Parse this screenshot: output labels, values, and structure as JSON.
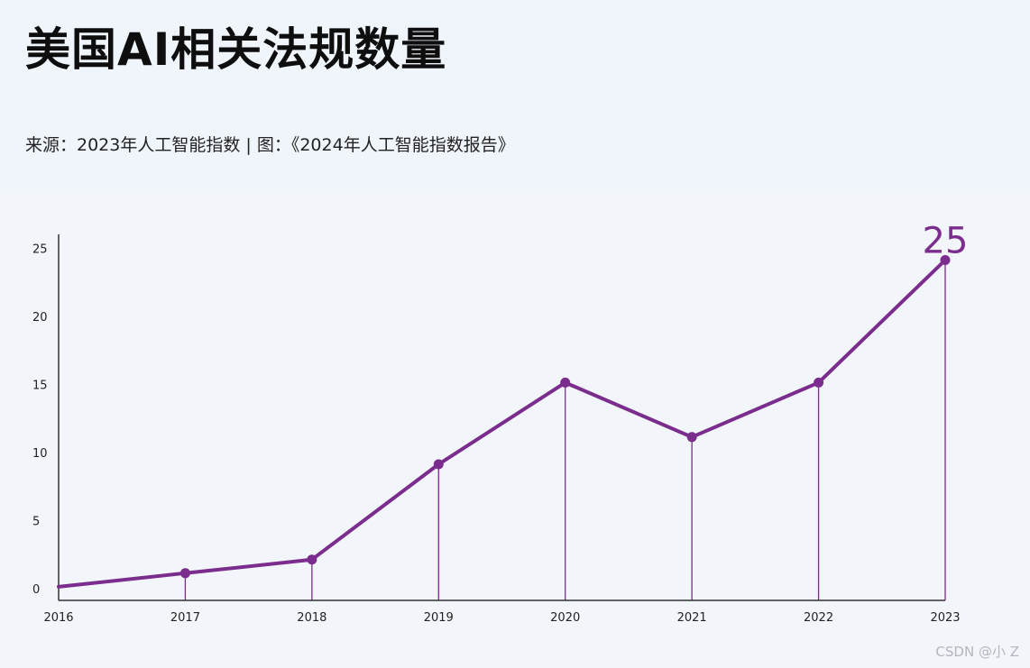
{
  "title": "美国AI相关法规数量",
  "source": "来源：2023年人工智能指数 | 图：《2024年人工智能指数报告》",
  "watermark": "CSDN @小 Z",
  "colors": {
    "line": "#7b2d8e",
    "axis": "#333333"
  },
  "chart_data": {
    "type": "line",
    "title": "美国AI相关法规数量",
    "x": [
      "2016",
      "2017",
      "2018",
      "2019",
      "2020",
      "2021",
      "2022",
      "2023"
    ],
    "values": [
      1,
      2,
      3,
      10,
      16,
      12,
      16,
      25
    ],
    "y_ticks": [
      "0",
      "5",
      "10",
      "15",
      "20",
      "25"
    ],
    "ylim": [
      0,
      26
    ],
    "grid": false,
    "drop_lines": true,
    "highlight_label": "25"
  }
}
